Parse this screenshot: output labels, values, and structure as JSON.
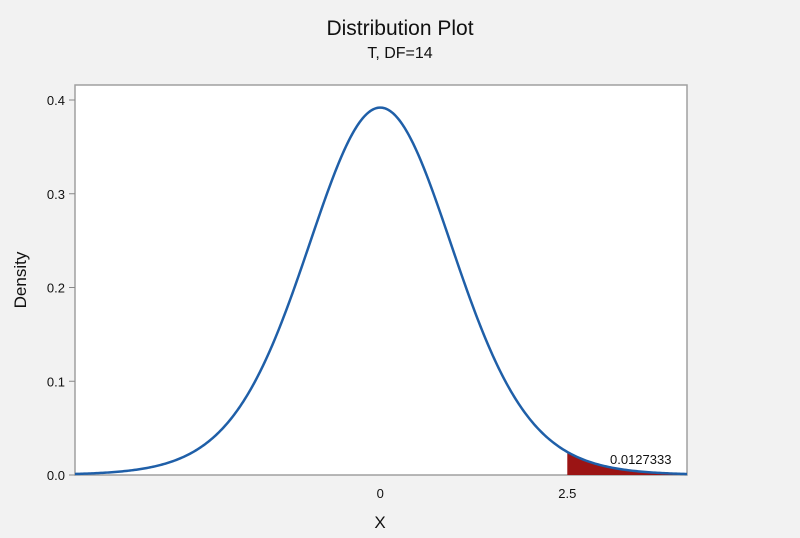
{
  "chart_data": {
    "type": "area",
    "title": "Distribution Plot",
    "subtitle": "T, DF=14",
    "xlabel": "X",
    "ylabel": "Density",
    "distribution": "t",
    "df": 14,
    "xlim": [
      -4.08,
      4.1
    ],
    "ylim": [
      0.0,
      0.415
    ],
    "y_ticks": [
      "0.0",
      "0.1",
      "0.2",
      "0.3",
      "0.4"
    ],
    "x_ticks": [
      "0",
      "2.5"
    ],
    "x_tick_values": [
      0,
      2.5
    ],
    "peak_density": 0.3925,
    "shaded_region": {
      "from": 2.5,
      "to": 4.1,
      "side": "right",
      "area": 0.0127333,
      "label": "0.0127333"
    },
    "grid": false,
    "legend": null,
    "colors": {
      "curve": "#1f5fa8",
      "shade": "#9b1414",
      "background": "#f2f2f2",
      "plot_bg": "#ffffff",
      "frame": "#a0a0a0"
    }
  }
}
